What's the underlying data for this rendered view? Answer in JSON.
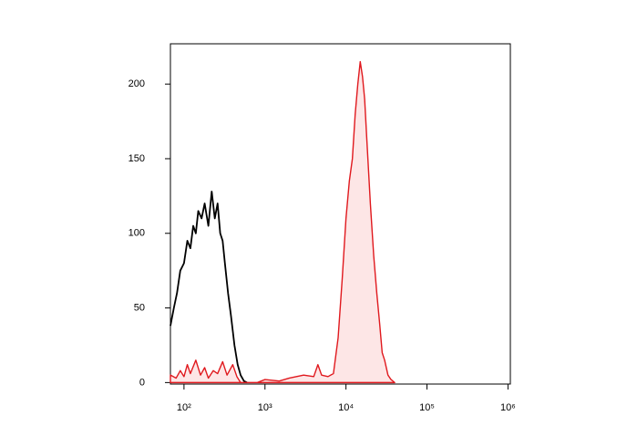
{
  "chart_data": {
    "type": "line",
    "xscale": "log",
    "xlim": [
      68,
      1070000
    ],
    "ylim": [
      -1,
      227
    ],
    "xticks": [
      {
        "value": 100,
        "label": "10²"
      },
      {
        "value": 1000,
        "label": "10³"
      },
      {
        "value": 10000,
        "label": "10⁴"
      },
      {
        "value": 100000,
        "label": "10⁵"
      },
      {
        "value": 1000000,
        "label": "10⁶"
      }
    ],
    "yticks": [
      0,
      50,
      100,
      150,
      200
    ],
    "series": [
      {
        "color": "#000000",
        "filled": false,
        "x": [
          68,
          75,
          82,
          90,
          100,
          110,
          120,
          130,
          140,
          150,
          165,
          180,
          200,
          220,
          240,
          260,
          280,
          300,
          320,
          350,
          380,
          420,
          460,
          500,
          550,
          600
        ],
        "values": [
          38,
          50,
          60,
          75,
          80,
          95,
          90,
          105,
          100,
          115,
          110,
          120,
          105,
          128,
          110,
          120,
          100,
          95,
          80,
          60,
          45,
          25,
          12,
          5,
          1,
          0
        ]
      },
      {
        "color": "#e0191e",
        "filled": true,
        "fill": "#fde6e6",
        "x": [
          68,
          80,
          90,
          100,
          110,
          120,
          140,
          160,
          180,
          200,
          230,
          260,
          300,
          340,
          400,
          450,
          500,
          600,
          800,
          1000,
          1500,
          2000,
          3000,
          4000,
          4500,
          5000,
          6000,
          7000,
          8000,
          9000,
          10000,
          11000,
          12000,
          13000,
          14000,
          15000,
          16000,
          17000,
          18000,
          20000,
          22000,
          24000,
          26000,
          28000,
          30000,
          33000,
          36000,
          40000
        ],
        "values": [
          5,
          3,
          8,
          4,
          12,
          6,
          15,
          5,
          10,
          3,
          8,
          6,
          14,
          5,
          12,
          4,
          0,
          0,
          0,
          2,
          1,
          3,
          5,
          4,
          12,
          5,
          4,
          6,
          30,
          70,
          110,
          135,
          150,
          180,
          200,
          215,
          205,
          190,
          165,
          120,
          85,
          60,
          40,
          20,
          15,
          5,
          2,
          0
        ]
      }
    ]
  }
}
